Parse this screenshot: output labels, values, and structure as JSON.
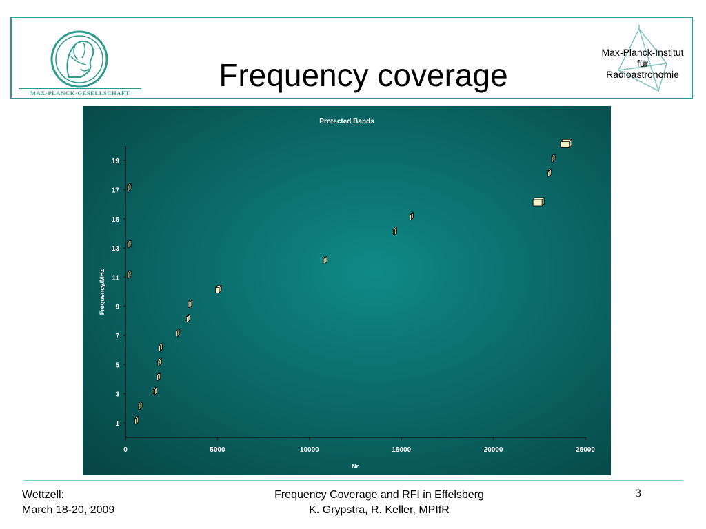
{
  "header": {
    "title": "Frequency coverage",
    "left_logo_text": "MAX-PLANCK-GESELLSCHAFT",
    "right_logo_lines": [
      "Max-Planck-Institut",
      "für",
      "Radioastronomie"
    ]
  },
  "footer": {
    "left_line1": "Wettzell;",
    "left_line2": "March 18-20, 2009",
    "center_line1": "Frequency Coverage and RFI in Effelsberg",
    "center_line2": "K. Grypstra, R. Keller, MPIfR",
    "page_number": "3"
  },
  "colors": {
    "accent": "#2e9b8f",
    "chart_bg": "#0b6a68",
    "marker_face": "#f3f0c8",
    "marker_edge": "#000000",
    "chart_text": "#ffffff"
  },
  "chart_data": {
    "type": "scatter",
    "title": "Protected Bands",
    "xlabel": "Nr.",
    "ylabel": "Frequency/MHz",
    "xlim": [
      0,
      25000
    ],
    "ylim": [
      0,
      20
    ],
    "x_ticks": [
      0,
      5000,
      10000,
      15000,
      20000,
      25000
    ],
    "y_ticks": [
      1,
      3,
      5,
      7,
      9,
      11,
      13,
      15,
      17,
      19
    ],
    "grid": false,
    "legend": "none",
    "points": [
      {
        "x": 150,
        "y": 17.1
      },
      {
        "x": 150,
        "y": 13.2
      },
      {
        "x": 150,
        "y": 11.1
      },
      {
        "x": 550,
        "y": 1.1
      },
      {
        "x": 750,
        "y": 2.1
      },
      {
        "x": 1550,
        "y": 3.1
      },
      {
        "x": 1750,
        "y": 4.1
      },
      {
        "x": 1800,
        "y": 5.1
      },
      {
        "x": 1850,
        "y": 6.1
      },
      {
        "x": 2800,
        "y": 7.1
      },
      {
        "x": 3350,
        "y": 8.1
      },
      {
        "x": 3450,
        "y": 9.1
      },
      {
        "x": 5000,
        "y": 10.1
      },
      {
        "x": 10800,
        "y": 12.1
      },
      {
        "x": 14600,
        "y": 14.1
      },
      {
        "x": 15500,
        "y": 15.1
      },
      {
        "x": 22400,
        "y": 16.1
      },
      {
        "x": 23000,
        "y": 18.1
      },
      {
        "x": 23200,
        "y": 19.1
      },
      {
        "x": 23900,
        "y": 20.1
      }
    ]
  }
}
